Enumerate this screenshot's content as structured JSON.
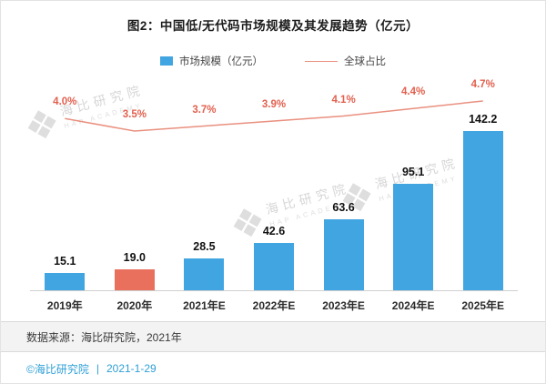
{
  "title": "图2：中国低/无代码市场规模及其发展趋势（亿元）",
  "chart_data": {
    "type": "bar",
    "title": "图2：中国低/无代码市场规模及其发展趋势（亿元）",
    "categories": [
      "2019年",
      "2020年",
      "2021年E",
      "2022年E",
      "2023年E",
      "2024年E",
      "2025年E"
    ],
    "series": [
      {
        "name": "市场规模（亿元）",
        "type": "bar",
        "values": [
          15.1,
          19.0,
          28.5,
          42.6,
          63.6,
          95.1,
          142.2
        ]
      },
      {
        "name": "全球占比",
        "type": "line",
        "unit": "%",
        "values": [
          4.0,
          3.5,
          3.7,
          3.9,
          4.1,
          4.4,
          4.7
        ]
      }
    ],
    "value_labels": [
      "15.1",
      "19.0",
      "28.5",
      "42.6",
      "63.6",
      "95.1",
      "142.2"
    ],
    "percent_labels": [
      "4.0%",
      "3.5%",
      "3.7%",
      "3.9%",
      "4.1%",
      "4.4%",
      "4.7%"
    ],
    "bar_color": "#41A5E1",
    "highlight_color": "#E8705C",
    "highlight_index": 1,
    "line_color": "#E9907F",
    "percent_label_color": "#E2604E",
    "legend_position": "top",
    "grid": false,
    "ylim": [
      0,
      160
    ]
  },
  "legend": {
    "bar_label": "市场规模（亿元）",
    "line_label": "全球占比"
  },
  "footer": {
    "source": "数据来源：海比研究院，2021年"
  },
  "bottom_bar": {
    "copyright": "©海比研究院",
    "separator": "|",
    "date": "2021-1-29",
    "color": "#2E9FD6"
  },
  "watermark": {
    "cn": "海比研究院",
    "en": "HAP ACADEMY"
  }
}
